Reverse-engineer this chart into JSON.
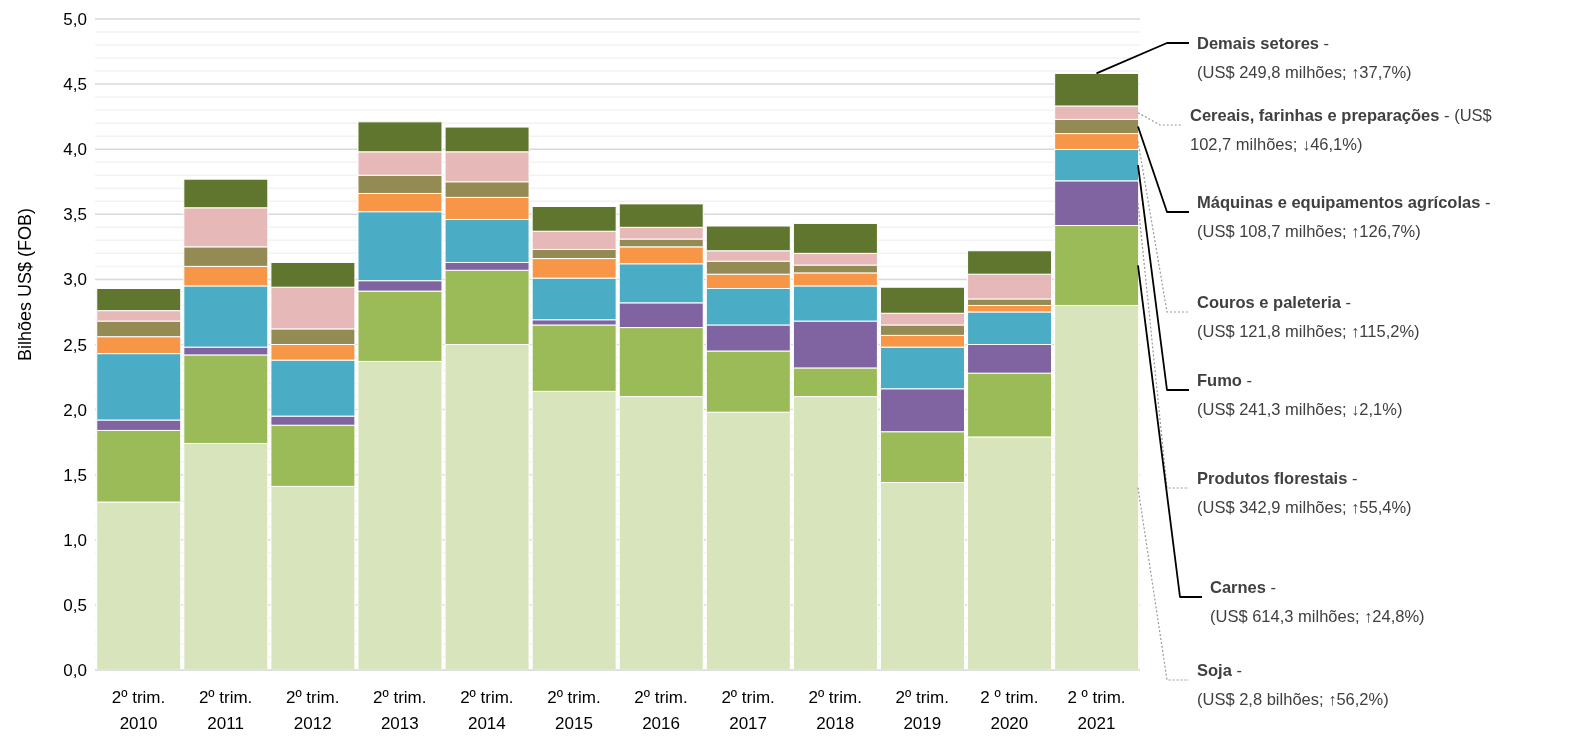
{
  "chart_data": {
    "type": "bar",
    "stacked": true,
    "ylabel": "Bilhões US$ (FOB)",
    "categories": [
      "2º trim. 2010",
      "2º trim. 2011",
      "2º trim. 2012",
      "2º trim. 2013",
      "2º trim. 2014",
      "2º trim. 2015",
      "2º trim. 2016",
      "2º trim. 2017",
      "2º trim. 2018",
      "2º trim. 2019",
      "2 º trim. 2020",
      "2 º trim. 2021"
    ],
    "series": [
      {
        "name": "Soja -\n(US$ 2,8 bilhões; ↑56,2%)",
        "color": "#d8e4bc",
        "values": [
          1.29,
          1.74,
          1.41,
          2.37,
          2.5,
          2.14,
          2.1,
          1.98,
          2.1,
          1.44,
          1.79,
          2.8
        ]
      },
      {
        "name": "Carnes -\n(US$ 614,3 milhões; ↑24,8%)",
        "color": "#9bbb59",
        "values": [
          0.55,
          0.68,
          0.47,
          0.54,
          0.57,
          0.51,
          0.53,
          0.47,
          0.22,
          0.39,
          0.49,
          0.614
        ]
      },
      {
        "name": "Produtos florestais -\n(US$ 342,9 milhões; ↑55,4%)",
        "color": "#8064a2",
        "values": [
          0.08,
          0.06,
          0.07,
          0.08,
          0.06,
          0.04,
          0.19,
          0.2,
          0.36,
          0.33,
          0.22,
          0.343
        ]
      },
      {
        "name": "Fumo -\n(US$ 241,3 milhões; ↓2,1%)",
        "color": "#4bacc6",
        "values": [
          0.51,
          0.47,
          0.43,
          0.53,
          0.33,
          0.32,
          0.3,
          0.28,
          0.27,
          0.32,
          0.25,
          0.241
        ]
      },
      {
        "name": "Couros e paleteria -\n(US$ 121,8 milhões; ↑115,2%)",
        "color": "#f79646",
        "values": [
          0.13,
          0.15,
          0.12,
          0.14,
          0.17,
          0.15,
          0.13,
          0.11,
          0.1,
          0.09,
          0.05,
          0.122
        ]
      },
      {
        "name": "Máquinas e equipamentos agrícolas -\n(US$ 108,7 milhões; ↑126,7%)",
        "color": "#948a54",
        "values": [
          0.12,
          0.15,
          0.12,
          0.14,
          0.12,
          0.07,
          0.06,
          0.1,
          0.06,
          0.08,
          0.05,
          0.109
        ]
      },
      {
        "name": "Cereais, farinhas e preparações - (US$\n102,7 milhões; ↓46,1%)",
        "color": "#e6b9b8",
        "values": [
          0.08,
          0.3,
          0.32,
          0.18,
          0.23,
          0.14,
          0.09,
          0.08,
          0.09,
          0.09,
          0.19,
          0.103
        ]
      },
      {
        "name": "Demais setores -\n(US$ 249,8 milhões; ↑37,7%)",
        "color": "#60762f",
        "values": [
          0.17,
          0.22,
          0.19,
          0.23,
          0.19,
          0.19,
          0.18,
          0.19,
          0.23,
          0.2,
          0.18,
          0.25
        ]
      }
    ],
    "ylim": [
      0,
      5
    ],
    "yticks": [
      {
        "value": 0,
        "label": "0,0"
      },
      {
        "value": 0.1,
        "label": null
      },
      {
        "value": 0.2,
        "label": null
      },
      {
        "value": 0.3,
        "label": null
      },
      {
        "value": 0.4,
        "label": null
      },
      {
        "value": 0.5,
        "label": "0,5"
      },
      {
        "value": 0.6,
        "label": null
      },
      {
        "value": 0.7,
        "label": null
      },
      {
        "value": 0.8,
        "label": null
      },
      {
        "value": 0.9,
        "label": null
      },
      {
        "value": 1,
        "label": "1,0"
      },
      {
        "value": 1.1,
        "label": null
      },
      {
        "value": 1.2,
        "label": null
      },
      {
        "value": 1.3,
        "label": null
      },
      {
        "value": 1.4,
        "label": null
      },
      {
        "value": 1.5,
        "label": "1,5"
      },
      {
        "value": 1.6,
        "label": null
      },
      {
        "value": 1.7,
        "label": null
      },
      {
        "value": 1.8,
        "label": null
      },
      {
        "value": 1.9,
        "label": null
      },
      {
        "value": 2,
        "label": "2,0"
      },
      {
        "value": 2.1,
        "label": null
      },
      {
        "value": 2.2,
        "label": null
      },
      {
        "value": 2.3,
        "label": null
      },
      {
        "value": 2.4,
        "label": null
      },
      {
        "value": 2.5,
        "label": "2,5"
      },
      {
        "value": 2.6,
        "label": null
      },
      {
        "value": 2.7,
        "label": null
      },
      {
        "value": 2.8,
        "label": null
      },
      {
        "value": 2.9,
        "label": null
      },
      {
        "value": 3,
        "label": "3,0"
      },
      {
        "value": 3.1,
        "label": null
      },
      {
        "value": 3.2,
        "label": null
      },
      {
        "value": 3.3,
        "label": null
      },
      {
        "value": 3.4,
        "label": null
      },
      {
        "value": 3.5,
        "label": "3,5"
      },
      {
        "value": 3.6,
        "label": null
      },
      {
        "value": 3.7,
        "label": null
      },
      {
        "value": 3.8,
        "label": null
      },
      {
        "value": 3.9,
        "label": null
      },
      {
        "value": 4,
        "label": "4,0"
      },
      {
        "value": 4.1,
        "label": null
      },
      {
        "value": 4.2,
        "label": null
      },
      {
        "value": 4.3,
        "label": null
      },
      {
        "value": 4.4,
        "label": null
      },
      {
        "value": 4.5,
        "label": "4,5"
      },
      {
        "value": 4.6,
        "label": null
      },
      {
        "value": 4.7,
        "label": null
      },
      {
        "value": 4.8,
        "label": null
      },
      {
        "value": 4.9,
        "label": null
      },
      {
        "value": 5,
        "label": "5,0"
      }
    ],
    "grid": "y"
  }
}
